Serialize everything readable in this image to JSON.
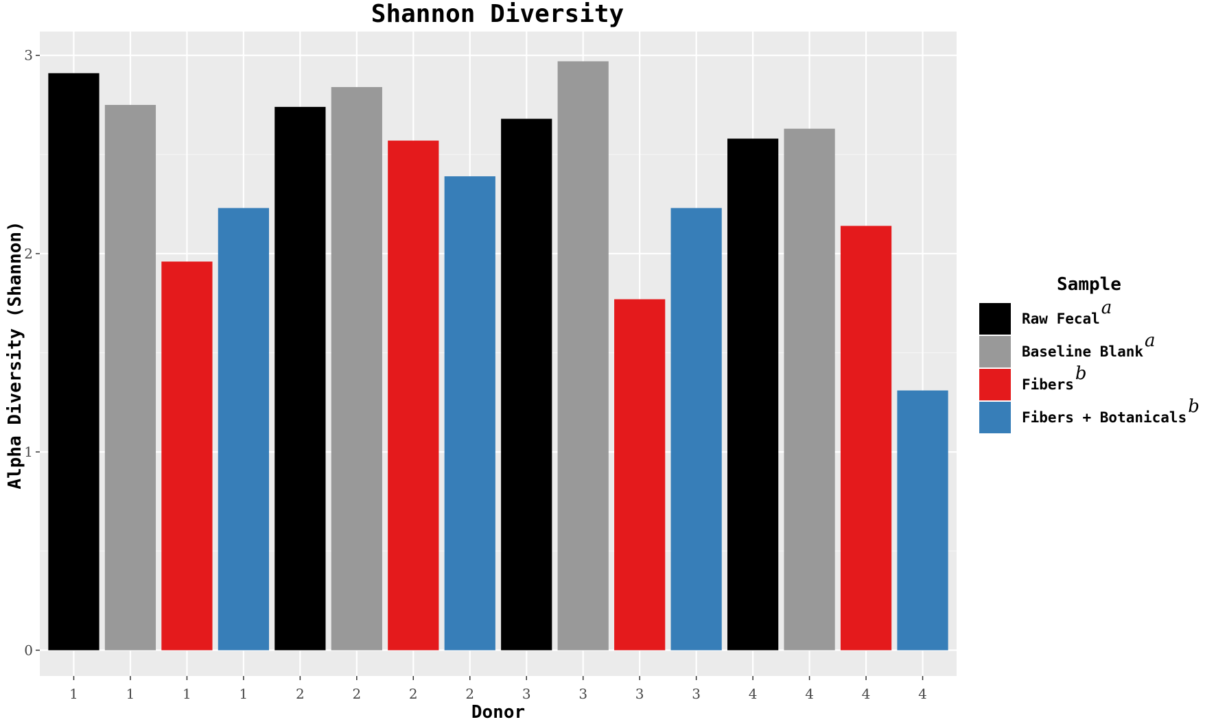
{
  "chart_data": {
    "type": "bar",
    "title": "Shannon Diversity",
    "xlabel": "Donor",
    "ylabel": "Alpha Diversity (Shannon)",
    "ylim": [
      -0.13,
      3.12
    ],
    "yticks": [
      0,
      1,
      2,
      3
    ],
    "grid": true,
    "categories": [
      "1",
      "1",
      "1",
      "1",
      "2",
      "2",
      "2",
      "2",
      "3",
      "3",
      "3",
      "3",
      "4",
      "4",
      "4",
      "4"
    ],
    "values": [
      2.91,
      2.75,
      1.96,
      2.23,
      2.74,
      2.84,
      2.57,
      2.39,
      2.68,
      2.97,
      1.77,
      2.23,
      2.58,
      2.63,
      2.14,
      1.31
    ],
    "series_index": [
      0,
      1,
      2,
      3,
      0,
      1,
      2,
      3,
      0,
      1,
      2,
      3,
      0,
      1,
      2,
      3
    ],
    "legend": {
      "title": "Sample",
      "position": "right",
      "entries": [
        {
          "label": "Raw Fecal",
          "sup": "a",
          "color": "#000000"
        },
        {
          "label": "Baseline Blank",
          "sup": "a",
          "color": "#999999"
        },
        {
          "label": "Fibers",
          "sup": "b",
          "color": "#e41a1c"
        },
        {
          "label": "Fibers + Botanicals",
          "sup": "b",
          "color": "#377eb8"
        }
      ]
    },
    "colors": {
      "panel_background": "#ebebeb",
      "grid_major": "#ffffff",
      "grid_minor": "#f5f5f5"
    }
  }
}
